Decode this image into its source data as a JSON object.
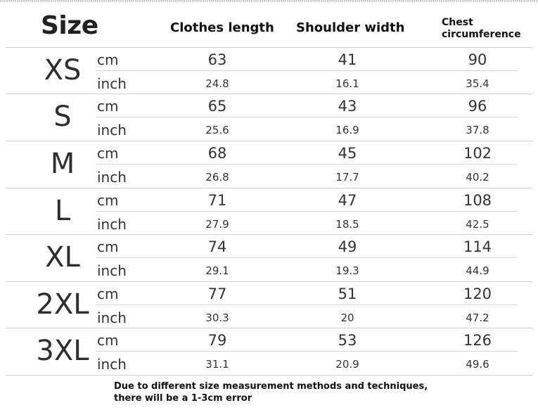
{
  "header": {
    "size_title": "Size",
    "columns": [
      "Clothes length",
      "Shoulder width",
      "Chest circumference"
    ]
  },
  "units": {
    "cm": "cm",
    "inch": "inch"
  },
  "rows": [
    {
      "size": "XS",
      "cm": [
        "63",
        "41",
        "90"
      ],
      "inch": [
        "24.8",
        "16.1",
        "35.4"
      ]
    },
    {
      "size": "S",
      "cm": [
        "65",
        "43",
        "96"
      ],
      "inch": [
        "25.6",
        "16.9",
        "37.8"
      ]
    },
    {
      "size": "M",
      "cm": [
        "68",
        "45",
        "102"
      ],
      "inch": [
        "26.8",
        "17.7",
        "40.2"
      ]
    },
    {
      "size": "L",
      "cm": [
        "71",
        "47",
        "108"
      ],
      "inch": [
        "27.9",
        "18.5",
        "42.5"
      ]
    },
    {
      "size": "XL",
      "cm": [
        "74",
        "49",
        "114"
      ],
      "inch": [
        "29.1",
        "19.3",
        "44.9"
      ]
    },
    {
      "size": "2XL",
      "cm": [
        "77",
        "51",
        "120"
      ],
      "inch": [
        "30.3",
        "20",
        "47.2"
      ]
    },
    {
      "size": "3XL",
      "cm": [
        "79",
        "53",
        "126"
      ],
      "inch": [
        "31.1",
        "20.9",
        "49.6"
      ]
    }
  ],
  "note": "Due to different size measurement methods and techniques, there will be a 1-3cm error"
}
